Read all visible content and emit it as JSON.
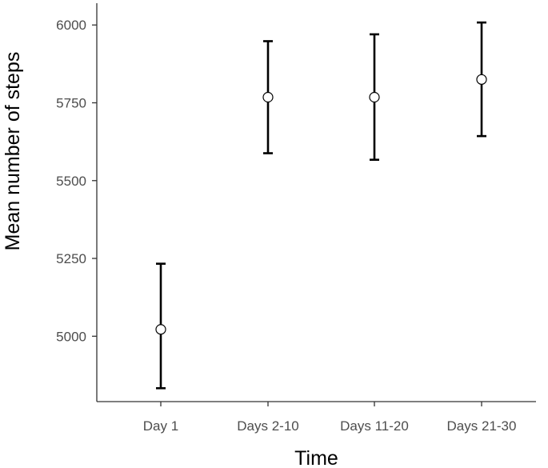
{
  "chart_data": {
    "type": "scatter",
    "title": "",
    "xlabel": "Time",
    "ylabel": "Mean number of steps",
    "categories": [
      "Day 1",
      "Days 2-10",
      "Days 11-20",
      "Days 21-30"
    ],
    "y_ticks": [
      5000,
      5250,
      5500,
      5750,
      6000
    ],
    "y_tick_labels": [
      "5000",
      "5250",
      "5500",
      "5750",
      "6000"
    ],
    "ylim": [
      4790,
      6070
    ],
    "grid": false,
    "legend": "none",
    "series": [
      {
        "values": [
          5022,
          5768,
          5768,
          5825
        ],
        "error_low": [
          4833,
          5588,
          5567,
          5643
        ],
        "error_high": [
          5233,
          5948,
          5970,
          6008
        ]
      }
    ],
    "colors": {
      "error_bar": "#000000",
      "point_fill": "#ffffff",
      "point_stroke": "#000000",
      "axis": "#333333",
      "tick_label": "#4d4d4d"
    }
  }
}
